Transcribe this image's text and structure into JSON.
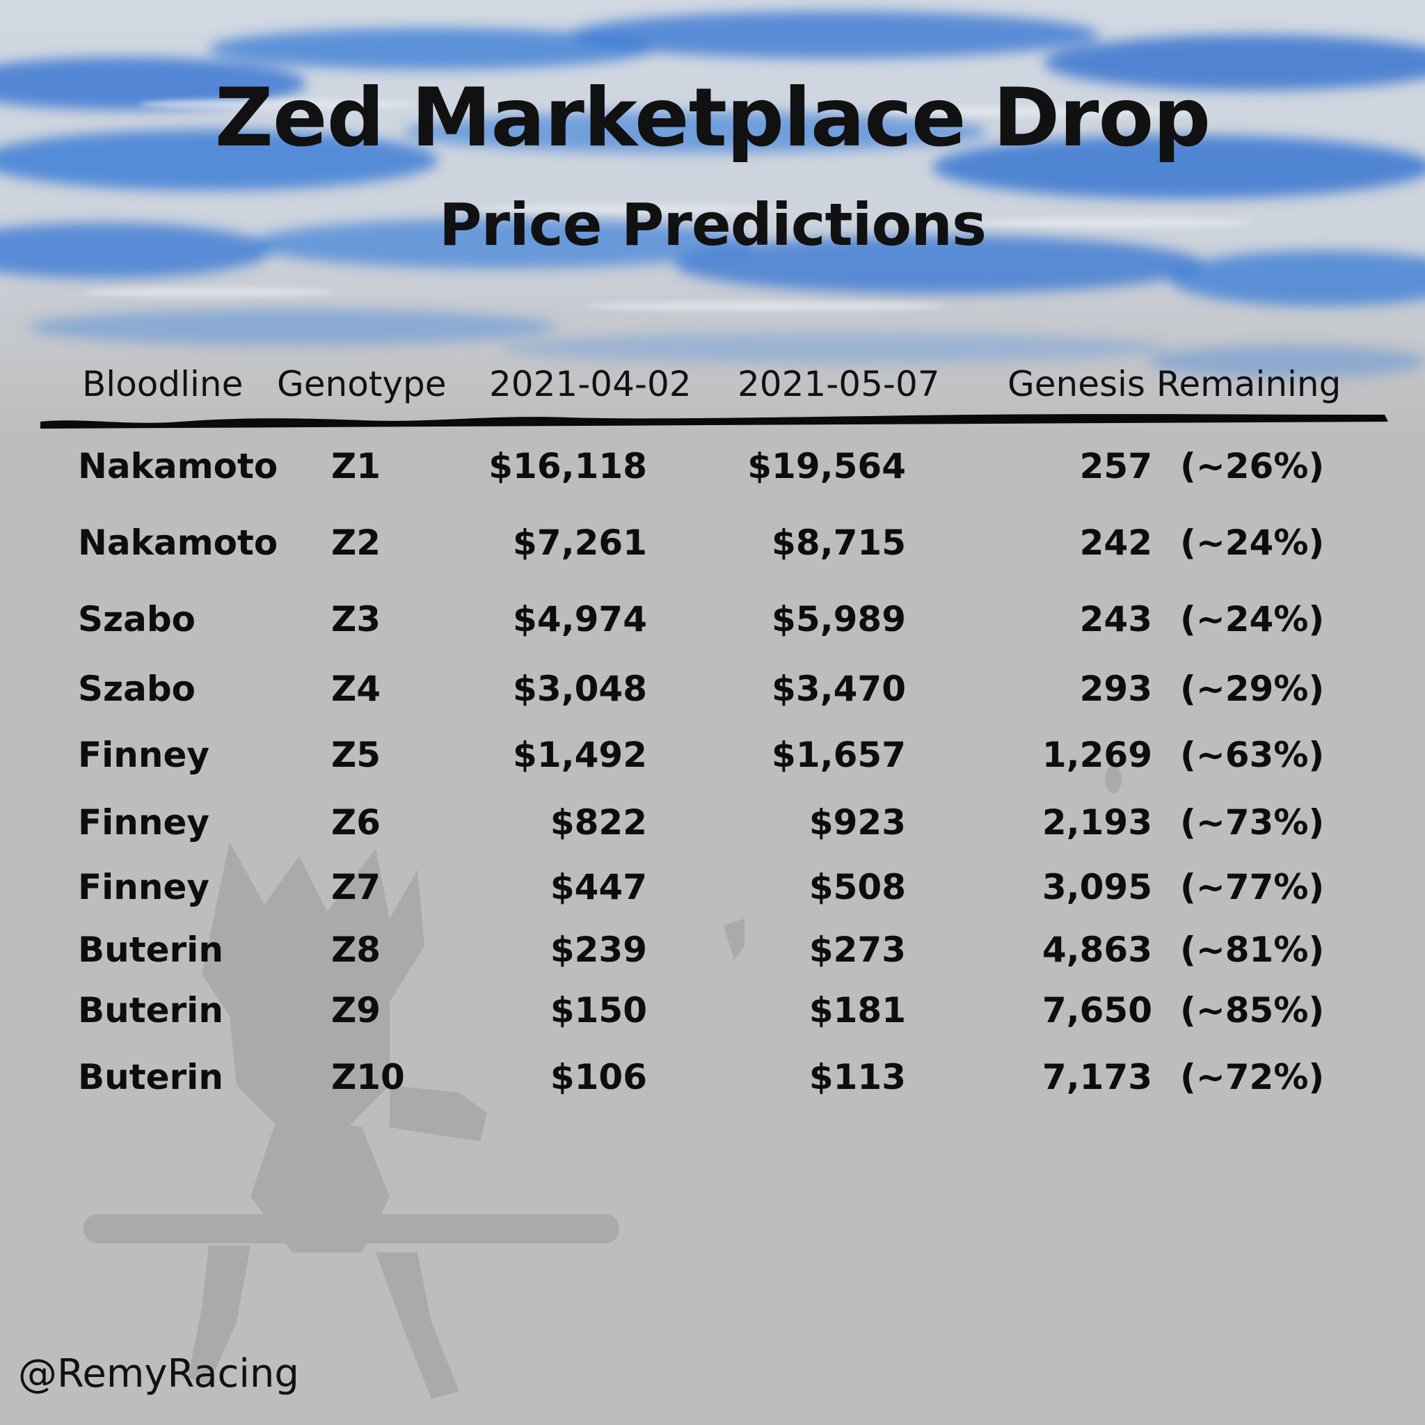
{
  "title": "Zed Marketplace Drop",
  "subtitle": "Price Predictions",
  "handle": "@RemyRacing",
  "colors": {
    "background": "#bdbdbd",
    "sky_blue": "#3f7fd6",
    "text": "#0d0d0d"
  },
  "chart_data": {
    "type": "table",
    "columns": [
      "Bloodline",
      "Genotype",
      "2021-04-02",
      "2021-05-07",
      "Genesis Remaining"
    ],
    "rows": [
      {
        "bloodline": "Nakamoto",
        "genotype": "Z1",
        "price_2021_04_02": "$16,118",
        "price_2021_05_07": "$19,564",
        "remaining": "257",
        "remaining_pct": "(~26%)"
      },
      {
        "bloodline": "Nakamoto",
        "genotype": "Z2",
        "price_2021_04_02": "$7,261",
        "price_2021_05_07": "$8,715",
        "remaining": "242",
        "remaining_pct": "(~24%)"
      },
      {
        "bloodline": "Szabo",
        "genotype": "Z3",
        "price_2021_04_02": "$4,974",
        "price_2021_05_07": "$5,989",
        "remaining": "243",
        "remaining_pct": "(~24%)"
      },
      {
        "bloodline": "Szabo",
        "genotype": "Z4",
        "price_2021_04_02": "$3,048",
        "price_2021_05_07": "$3,470",
        "remaining": "293",
        "remaining_pct": "(~29%)"
      },
      {
        "bloodline": "Finney",
        "genotype": "Z5",
        "price_2021_04_02": "$1,492",
        "price_2021_05_07": "$1,657",
        "remaining": "1,269",
        "remaining_pct": "(~63%)"
      },
      {
        "bloodline": "Finney",
        "genotype": "Z6",
        "price_2021_04_02": "$822",
        "price_2021_05_07": "$923",
        "remaining": "2,193",
        "remaining_pct": "(~73%)"
      },
      {
        "bloodline": "Finney",
        "genotype": "Z7",
        "price_2021_04_02": "$447",
        "price_2021_05_07": "$508",
        "remaining": "3,095",
        "remaining_pct": "(~77%)"
      },
      {
        "bloodline": "Buterin",
        "genotype": "Z8",
        "price_2021_04_02": "$239",
        "price_2021_05_07": "$273",
        "remaining": "4,863",
        "remaining_pct": "(~81%)"
      },
      {
        "bloodline": "Buterin",
        "genotype": "Z9",
        "price_2021_04_02": "$150",
        "price_2021_05_07": "$181",
        "remaining": "7,650",
        "remaining_pct": "(~85%)"
      },
      {
        "bloodline": "Buterin",
        "genotype": "Z10",
        "price_2021_04_02": "$106",
        "price_2021_05_07": "$113",
        "remaining": "7,173",
        "remaining_pct": "(~72%)"
      }
    ]
  }
}
